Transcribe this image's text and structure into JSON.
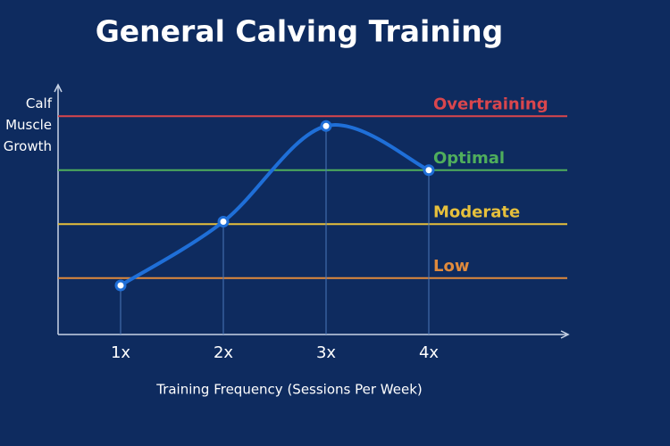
{
  "chart_data": {
    "type": "line",
    "title": "General Calving Training",
    "x_label": "Training Frequency (Sessions Per Week)",
    "y_label": "Calf Muscle Growth",
    "categories": [
      "1x",
      "2x",
      "3x",
      "4x"
    ],
    "series": [
      {
        "color": "#1f6fd8",
        "values": [
          20,
          46,
          85,
          67
        ]
      }
    ],
    "ylim": [
      0,
      100
    ],
    "reference_lines": [
      {
        "label": "Overtraining",
        "value": 89,
        "color": "#d9464d"
      },
      {
        "label": "Optimal",
        "value": 67,
        "color": "#4fae5c"
      },
      {
        "label": "Moderate",
        "value": 45,
        "color": "#e6c03c"
      },
      {
        "label": "Low",
        "value": 23,
        "color": "#e08a3c"
      }
    ]
  }
}
